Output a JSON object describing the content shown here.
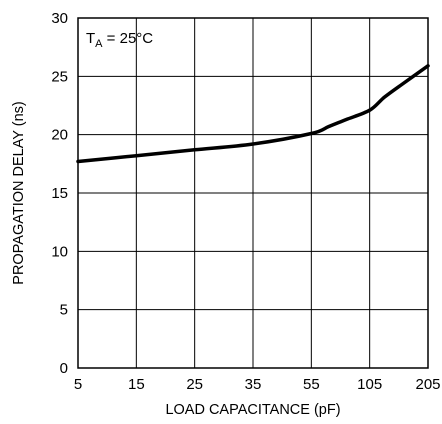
{
  "chart_data": {
    "type": "line",
    "xlabel": "LOAD CAPACITANCE (pF)",
    "ylabel": "PROPAGATION DELAY (ns)",
    "annotation": {
      "base": "T",
      "subscript": "A",
      "rest": " = 25°C"
    },
    "x_ticks": [
      "5",
      "15",
      "25",
      "35",
      "55",
      "105",
      "205"
    ],
    "y_ticks": [
      "0",
      "5",
      "10",
      "15",
      "20",
      "25",
      "30"
    ],
    "ylim": [
      0,
      30
    ],
    "grid": true,
    "series": [
      {
        "x": [
          5,
          15,
          25,
          35,
          55,
          70,
          85,
          105,
          130,
          160,
          205
        ],
        "y": [
          17.7,
          18.2,
          18.7,
          19.2,
          20.1,
          20.7,
          21.3,
          22.1,
          23.2,
          24.3,
          25.9
        ]
      }
    ]
  }
}
